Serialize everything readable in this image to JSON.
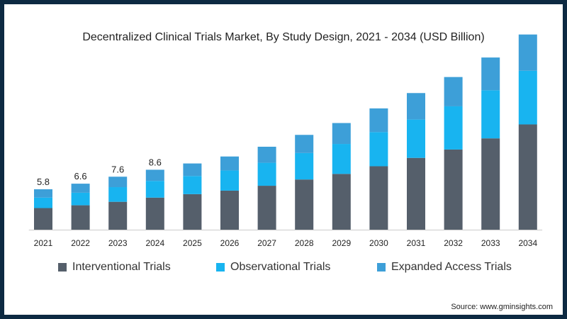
{
  "chart_data": {
    "type": "bar",
    "stacked": true,
    "title": "Decentralized Clinical Trials Market, By Study Design, 2021 - 2034 (USD Billion)",
    "categories": [
      "2021",
      "2022",
      "2023",
      "2024",
      "2025",
      "2026",
      "2027",
      "2028",
      "2029",
      "2030",
      "2031",
      "2032",
      "2033",
      "2034"
    ],
    "series": [
      {
        "name": "Interventional Trials",
        "color": "#555f6b",
        "values": [
          3.1,
          3.5,
          4.0,
          4.6,
          5.1,
          5.6,
          6.3,
          7.2,
          8.0,
          9.1,
          10.3,
          11.5,
          13.1,
          15.1
        ]
      },
      {
        "name": "Observational Trials",
        "color": "#18b4f0",
        "values": [
          1.5,
          1.8,
          2.1,
          2.4,
          2.6,
          2.9,
          3.3,
          3.8,
          4.3,
          4.9,
          5.5,
          6.2,
          6.9,
          7.7
        ]
      },
      {
        "name": "Expanded Access Trials",
        "color": "#3d9fd8",
        "values": [
          1.2,
          1.3,
          1.5,
          1.6,
          1.8,
          2.0,
          2.3,
          2.6,
          3.0,
          3.4,
          3.8,
          4.2,
          4.7,
          5.2
        ]
      }
    ],
    "data_labels": [
      "5.8",
      "6.6",
      "7.6",
      "8.6",
      "",
      "",
      "",
      "",
      "",
      "",
      "",
      "",
      "",
      ""
    ],
    "ylim": [
      0,
      30
    ],
    "xlabel": "",
    "ylabel": "",
    "legend": "bottom"
  },
  "source": "Source: www.gminsights.com"
}
